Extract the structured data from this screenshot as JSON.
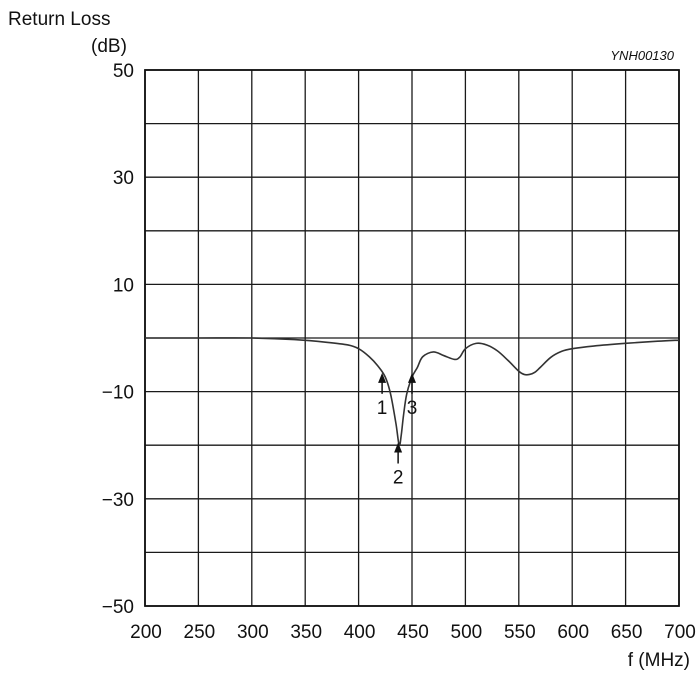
{
  "chart_data": {
    "type": "line",
    "title": "",
    "figure_code": "YNH00130",
    "ylabel_line1": "Return Loss",
    "ylabel_line2": "(dB)",
    "xlabel": "f (MHz)",
    "xlim": [
      200,
      700
    ],
    "ylim": [
      -50,
      50
    ],
    "x_ticks": [
      200,
      250,
      300,
      350,
      400,
      450,
      500,
      550,
      600,
      650,
      700
    ],
    "x_tick_labels": [
      "200",
      "250",
      "300",
      "350",
      "400",
      "450",
      "500",
      "550",
      "600",
      "650",
      "700"
    ],
    "y_ticks": [
      50,
      30,
      10,
      -10,
      -30,
      -50
    ],
    "y_tick_labels": [
      "50",
      "30",
      "10",
      "−10",
      "−30",
      "−50"
    ],
    "grid": true,
    "series": [
      {
        "x": [
          200,
          250,
          300,
          340,
          370,
          390,
          400,
          410,
          418,
          425,
          430,
          435,
          438,
          440,
          442,
          445,
          450,
          455,
          460,
          470,
          480,
          490,
          495,
          500,
          510,
          520,
          530,
          540,
          550,
          555,
          560,
          565,
          570,
          580,
          590,
          600,
          620,
          650,
          680,
          700
        ],
        "y": [
          0,
          0,
          0,
          -0.3,
          -0.8,
          -1.3,
          -2.0,
          -3.5,
          -5.2,
          -7.3,
          -10.5,
          -16.0,
          -20.0,
          -18.0,
          -14.5,
          -10.5,
          -7.3,
          -5.5,
          -3.5,
          -2.6,
          -3.3,
          -4.0,
          -3.5,
          -2.0,
          -1.0,
          -1.3,
          -2.4,
          -4.2,
          -6.2,
          -6.8,
          -6.8,
          -6.4,
          -5.5,
          -3.6,
          -2.5,
          -2.0,
          -1.5,
          -1.0,
          -0.6,
          -0.4
        ]
      }
    ],
    "markers": [
      {
        "label": "1",
        "x": 422,
        "y": -6.5
      },
      {
        "label": "2",
        "x": 437,
        "y": -19.5
      },
      {
        "label": "3",
        "x": 450,
        "y": -6.5
      }
    ]
  }
}
